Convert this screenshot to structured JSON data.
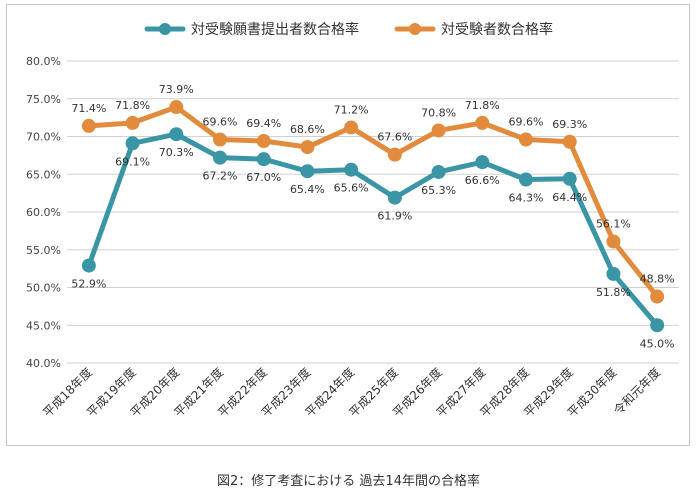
{
  "chart_data": {
    "type": "line",
    "title": "",
    "xlabel": "",
    "ylabel": "",
    "ylim": [
      40,
      80
    ],
    "y_ticks": [
      "40.0%",
      "45.0%",
      "50.0%",
      "55.0%",
      "60.0%",
      "65.0%",
      "70.0%",
      "75.0%",
      "80.0%"
    ],
    "grid": true,
    "legend": "top-center",
    "categories": [
      "平成18年度",
      "平成19年度",
      "平成20年度",
      "平成21年度",
      "平成22年度",
      "平成23年度",
      "平成24年度",
      "平成25年度",
      "平成26年度",
      "平成27年度",
      "平成28年度",
      "平成29年度",
      "平成30年度",
      "令和元年度"
    ],
    "series": [
      {
        "name": "対受験願書提出者数合格率",
        "color": "#3a95a4",
        "values": [
          52.9,
          69.1,
          70.3,
          67.2,
          67.0,
          65.4,
          65.6,
          61.9,
          65.3,
          66.6,
          64.3,
          64.4,
          51.8,
          45.0
        ],
        "labels": [
          "52.9%",
          "69.1%",
          "70.3%",
          "67.2%",
          "67.0%",
          "65.4%",
          "65.6%",
          "61.9%",
          "65.3%",
          "66.6%",
          "64.3%",
          "64.4%",
          "51.8%",
          "45.0%"
        ],
        "label_position": "below"
      },
      {
        "name": "対受験者数合格率",
        "color": "#e38b3d",
        "values": [
          71.4,
          71.8,
          73.9,
          69.6,
          69.4,
          68.6,
          71.2,
          67.6,
          70.8,
          71.8,
          69.6,
          69.3,
          56.1,
          48.8
        ],
        "labels": [
          "71.4%",
          "71.8%",
          "73.9%",
          "69.6%",
          "69.4%",
          "68.6%",
          "71.2%",
          "67.6%",
          "70.8%",
          "71.8%",
          "69.6%",
          "69.3%",
          "56.1%",
          "48.8%"
        ],
        "label_position": "above"
      }
    ]
  },
  "caption": "図2：修了考査における 過去14年間の合格率"
}
